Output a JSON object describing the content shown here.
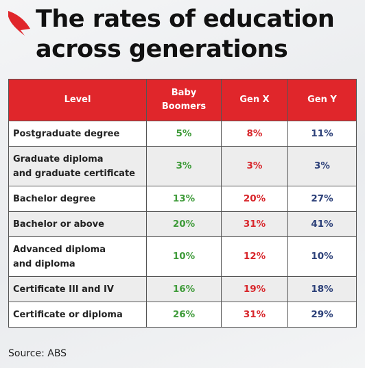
{
  "header": {
    "title": "The rates of education\nacross generations"
  },
  "table": {
    "columns": [
      "Level",
      "Baby\nBoomers",
      "Gen X",
      "Gen Y"
    ],
    "rows": [
      [
        "Postgraduate degree",
        "5%",
        "8%",
        "11%"
      ],
      [
        "Graduate diploma\nand graduate certificate",
        "3%",
        "3%",
        "3%"
      ],
      [
        "Bachelor degree",
        "13%",
        "20%",
        "27%"
      ],
      [
        "Bachelor or above",
        "20%",
        "31%",
        "41%"
      ],
      [
        "Advanced diploma\nand diploma",
        "10%",
        "12%",
        "10%"
      ],
      [
        "Certificate III and IV",
        "16%",
        "19%",
        "18%"
      ],
      [
        "Certificate or diploma",
        "26%",
        "31%",
        "29%"
      ]
    ]
  },
  "source": "Source: ABS"
}
